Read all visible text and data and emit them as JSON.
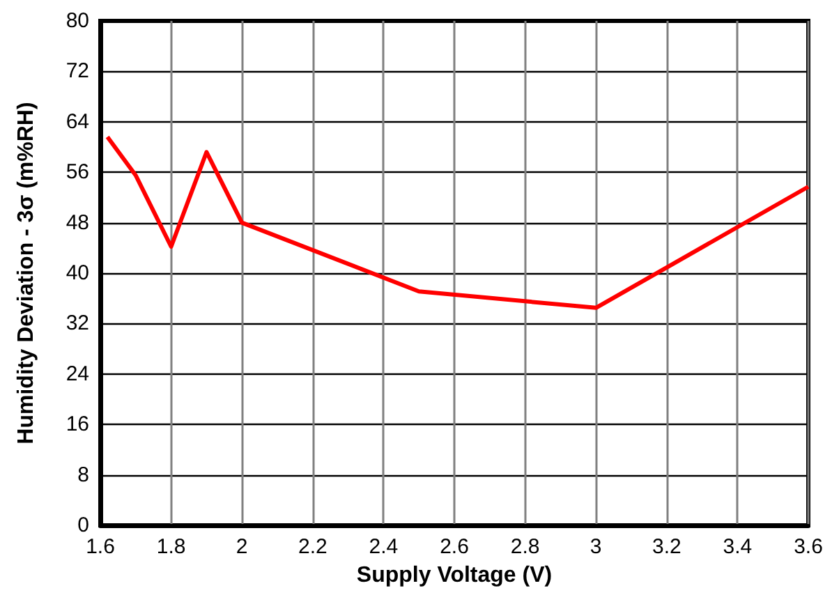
{
  "chart_data": {
    "type": "line",
    "xlabel": "Supply Voltage (V)",
    "ylabel": "Humidity Deviation - 3σ (m%RH)",
    "x": [
      1.62,
      1.7,
      1.8,
      1.9,
      2.0,
      2.5,
      3.0,
      3.6
    ],
    "series": [
      {
        "color": "#ff0000",
        "values": [
          61.6,
          55.5,
          44.2,
          59.2,
          48,
          37.1,
          34.5,
          53.7
        ]
      }
    ],
    "xlim": [
      1.6,
      3.6
    ],
    "xticks": [
      1.6,
      1.8,
      2,
      2.2,
      2.4,
      2.6,
      2.8,
      3,
      3.2,
      3.4,
      3.6
    ],
    "ylim": [
      0,
      80
    ],
    "yticks": [
      0,
      8,
      16,
      24,
      32,
      40,
      48,
      56,
      64,
      72,
      80
    ],
    "grid": true,
    "marker": "none",
    "line_style": "solid"
  }
}
